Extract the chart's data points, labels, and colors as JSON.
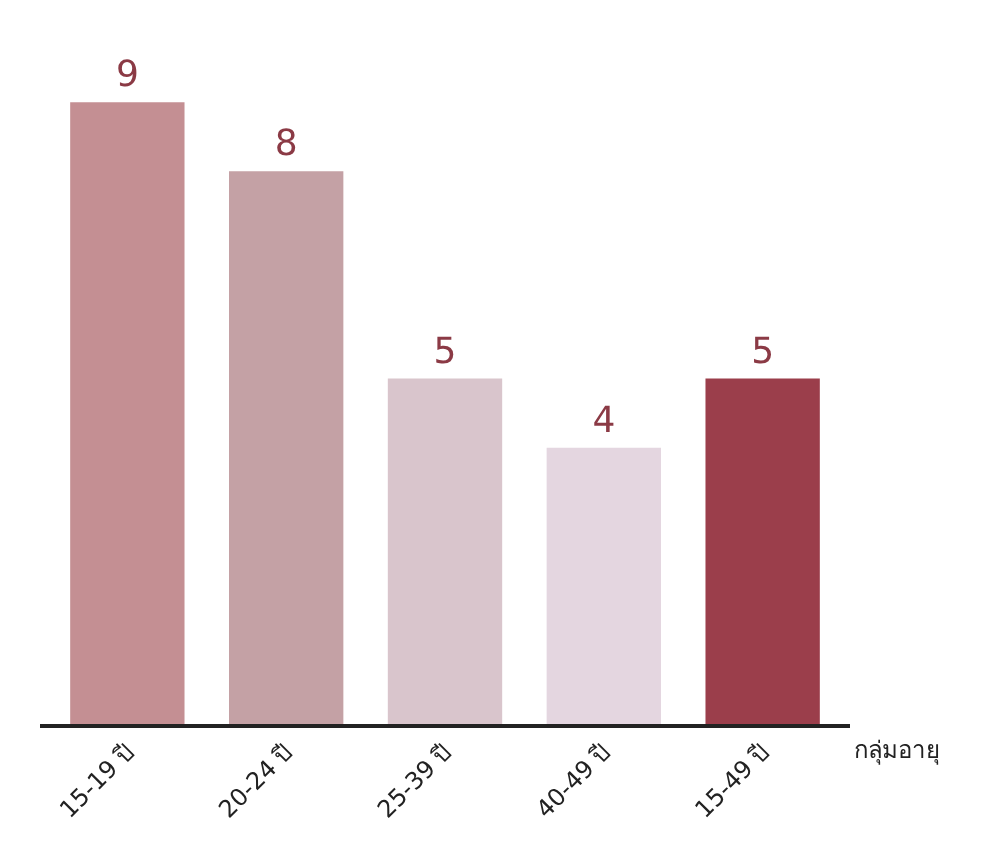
{
  "chart_data": {
    "type": "bar",
    "xlabel": "กลุ่มอายุ",
    "categories": [
      "15-19 ปี",
      "20-24 ปี",
      "25-39 ปี",
      "40-49 ปี",
      "15-49 ปี"
    ],
    "values": [
      9,
      8,
      5,
      4,
      5
    ],
    "colors": [
      "#c48f93",
      "#c4a1a5",
      "#d9c5cc",
      "#e4d6e0",
      "#9b3e4b"
    ],
    "data_labels": true
  }
}
